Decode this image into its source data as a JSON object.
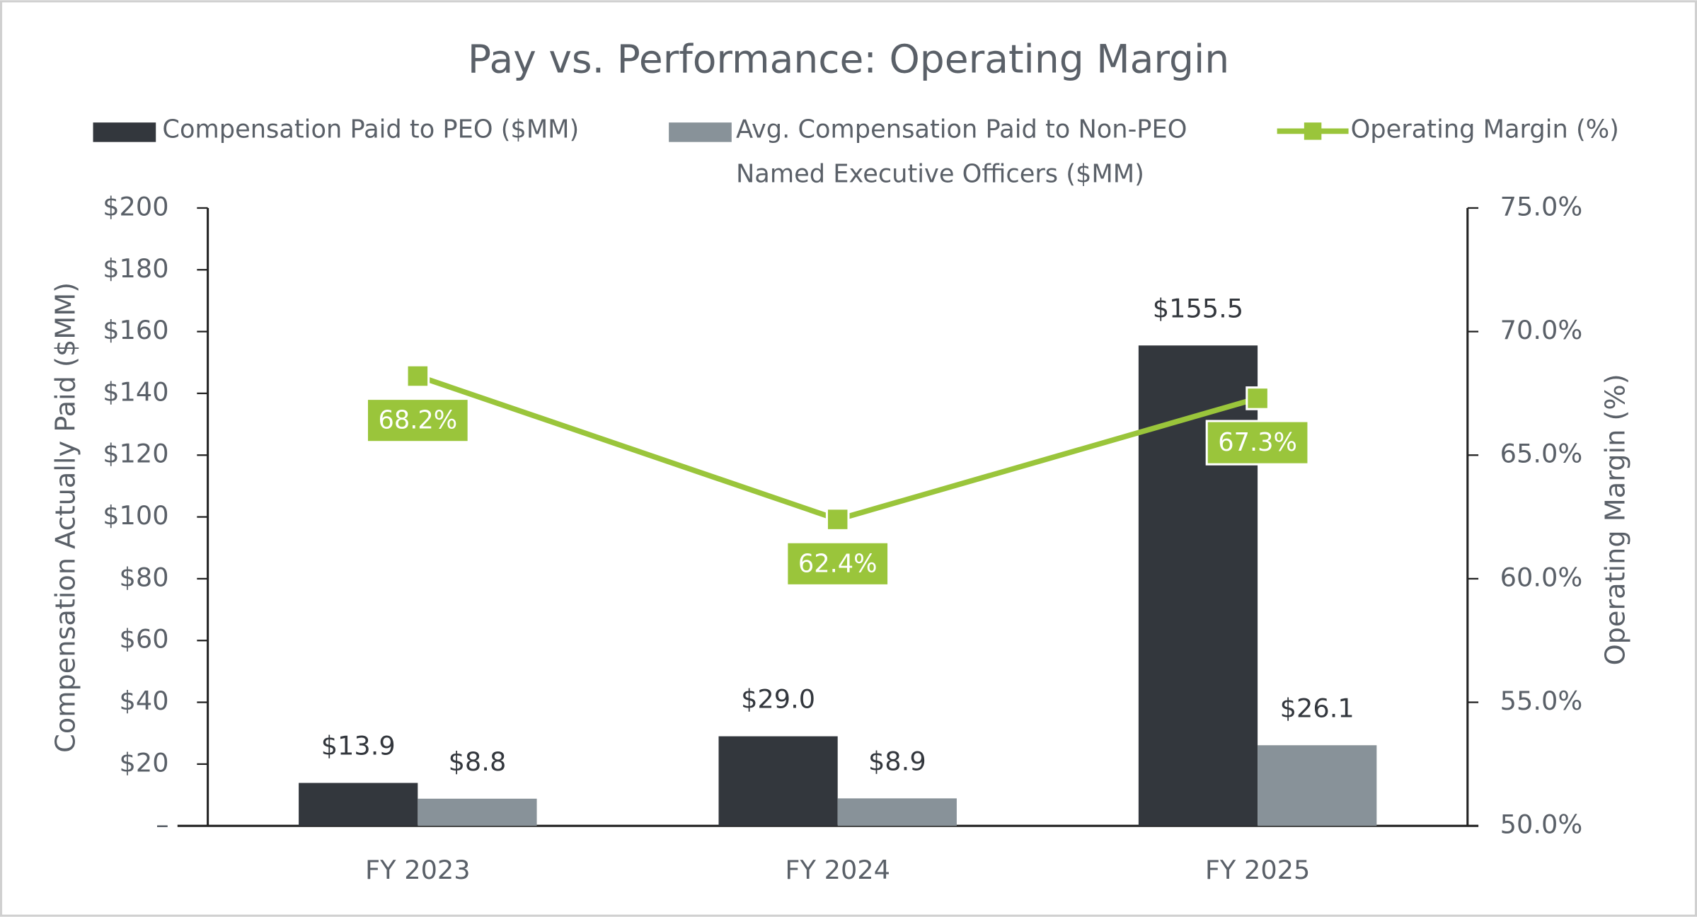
{
  "chart_data": {
    "type": "bar",
    "title": "Pay vs. Performance: Operating Margin",
    "categories": [
      "FY 2023",
      "FY 2024",
      "FY 2025"
    ],
    "ylabel": "Compensation Actually Paid ($MM)",
    "y2label": "Operating Margin (%)",
    "ylim": [
      0,
      200
    ],
    "yticks": [
      {
        "value": 0,
        "label": "–"
      },
      {
        "value": 20,
        "label": "$20"
      },
      {
        "value": 40,
        "label": "$40"
      },
      {
        "value": 60,
        "label": "$60"
      },
      {
        "value": 80,
        "label": "$80"
      },
      {
        "value": 100,
        "label": "$100"
      },
      {
        "value": 120,
        "label": "$120"
      },
      {
        "value": 140,
        "label": "$140"
      },
      {
        "value": 160,
        "label": "$160"
      },
      {
        "value": 180,
        "label": "$180"
      },
      {
        "value": 200,
        "label": "$200"
      }
    ],
    "y2lim": [
      50,
      75
    ],
    "y2ticks": [
      {
        "value": 50,
        "label": "50.0%"
      },
      {
        "value": 55,
        "label": "55.0%"
      },
      {
        "value": 60,
        "label": "60.0%"
      },
      {
        "value": 65,
        "label": "65.0%"
      },
      {
        "value": 70,
        "label": "70.0%"
      },
      {
        "value": 75,
        "label": "75.0%"
      }
    ],
    "series": [
      {
        "name": "Compensation Paid to PEO ($MM)",
        "color": "#33373d",
        "type": "bar",
        "values": [
          13.9,
          29.0,
          155.5
        ],
        "value_labels": [
          "$13.9",
          "$29.0",
          "$155.5"
        ]
      },
      {
        "name": "Avg. Compensation Paid to Non-PEO Named Executive Officers ($MM)",
        "color": "#889299",
        "type": "bar",
        "values": [
          8.8,
          8.9,
          26.1
        ],
        "value_labels": [
          "$8.8",
          "$8.9",
          "$26.1"
        ]
      },
      {
        "name": "Operating Margin (%)",
        "color": "#9ac53b",
        "type": "line",
        "axis": "y2",
        "values": [
          68.2,
          62.4,
          67.3
        ],
        "value_labels": [
          "68.2%",
          "62.4%",
          "67.3%"
        ]
      }
    ]
  }
}
